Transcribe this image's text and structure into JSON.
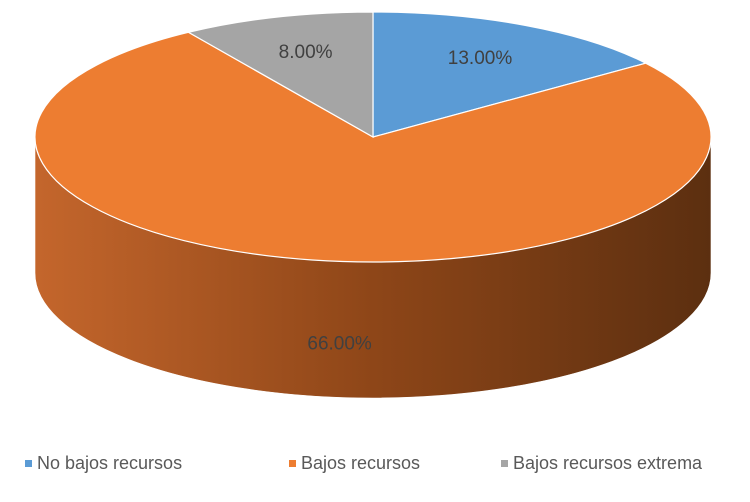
{
  "chart_data": {
    "type": "pie3d",
    "categories": [
      "No bajos recursos",
      "Bajos recursos",
      "Bajos recursos extrema"
    ],
    "values": [
      13,
      66,
      8
    ],
    "value_labels": [
      "13.00%",
      "66.00%",
      "8.00%"
    ],
    "colors": [
      "#5b9bd5",
      "#ed7d31",
      "#a5a5a5"
    ],
    "legend": "bottom"
  }
}
